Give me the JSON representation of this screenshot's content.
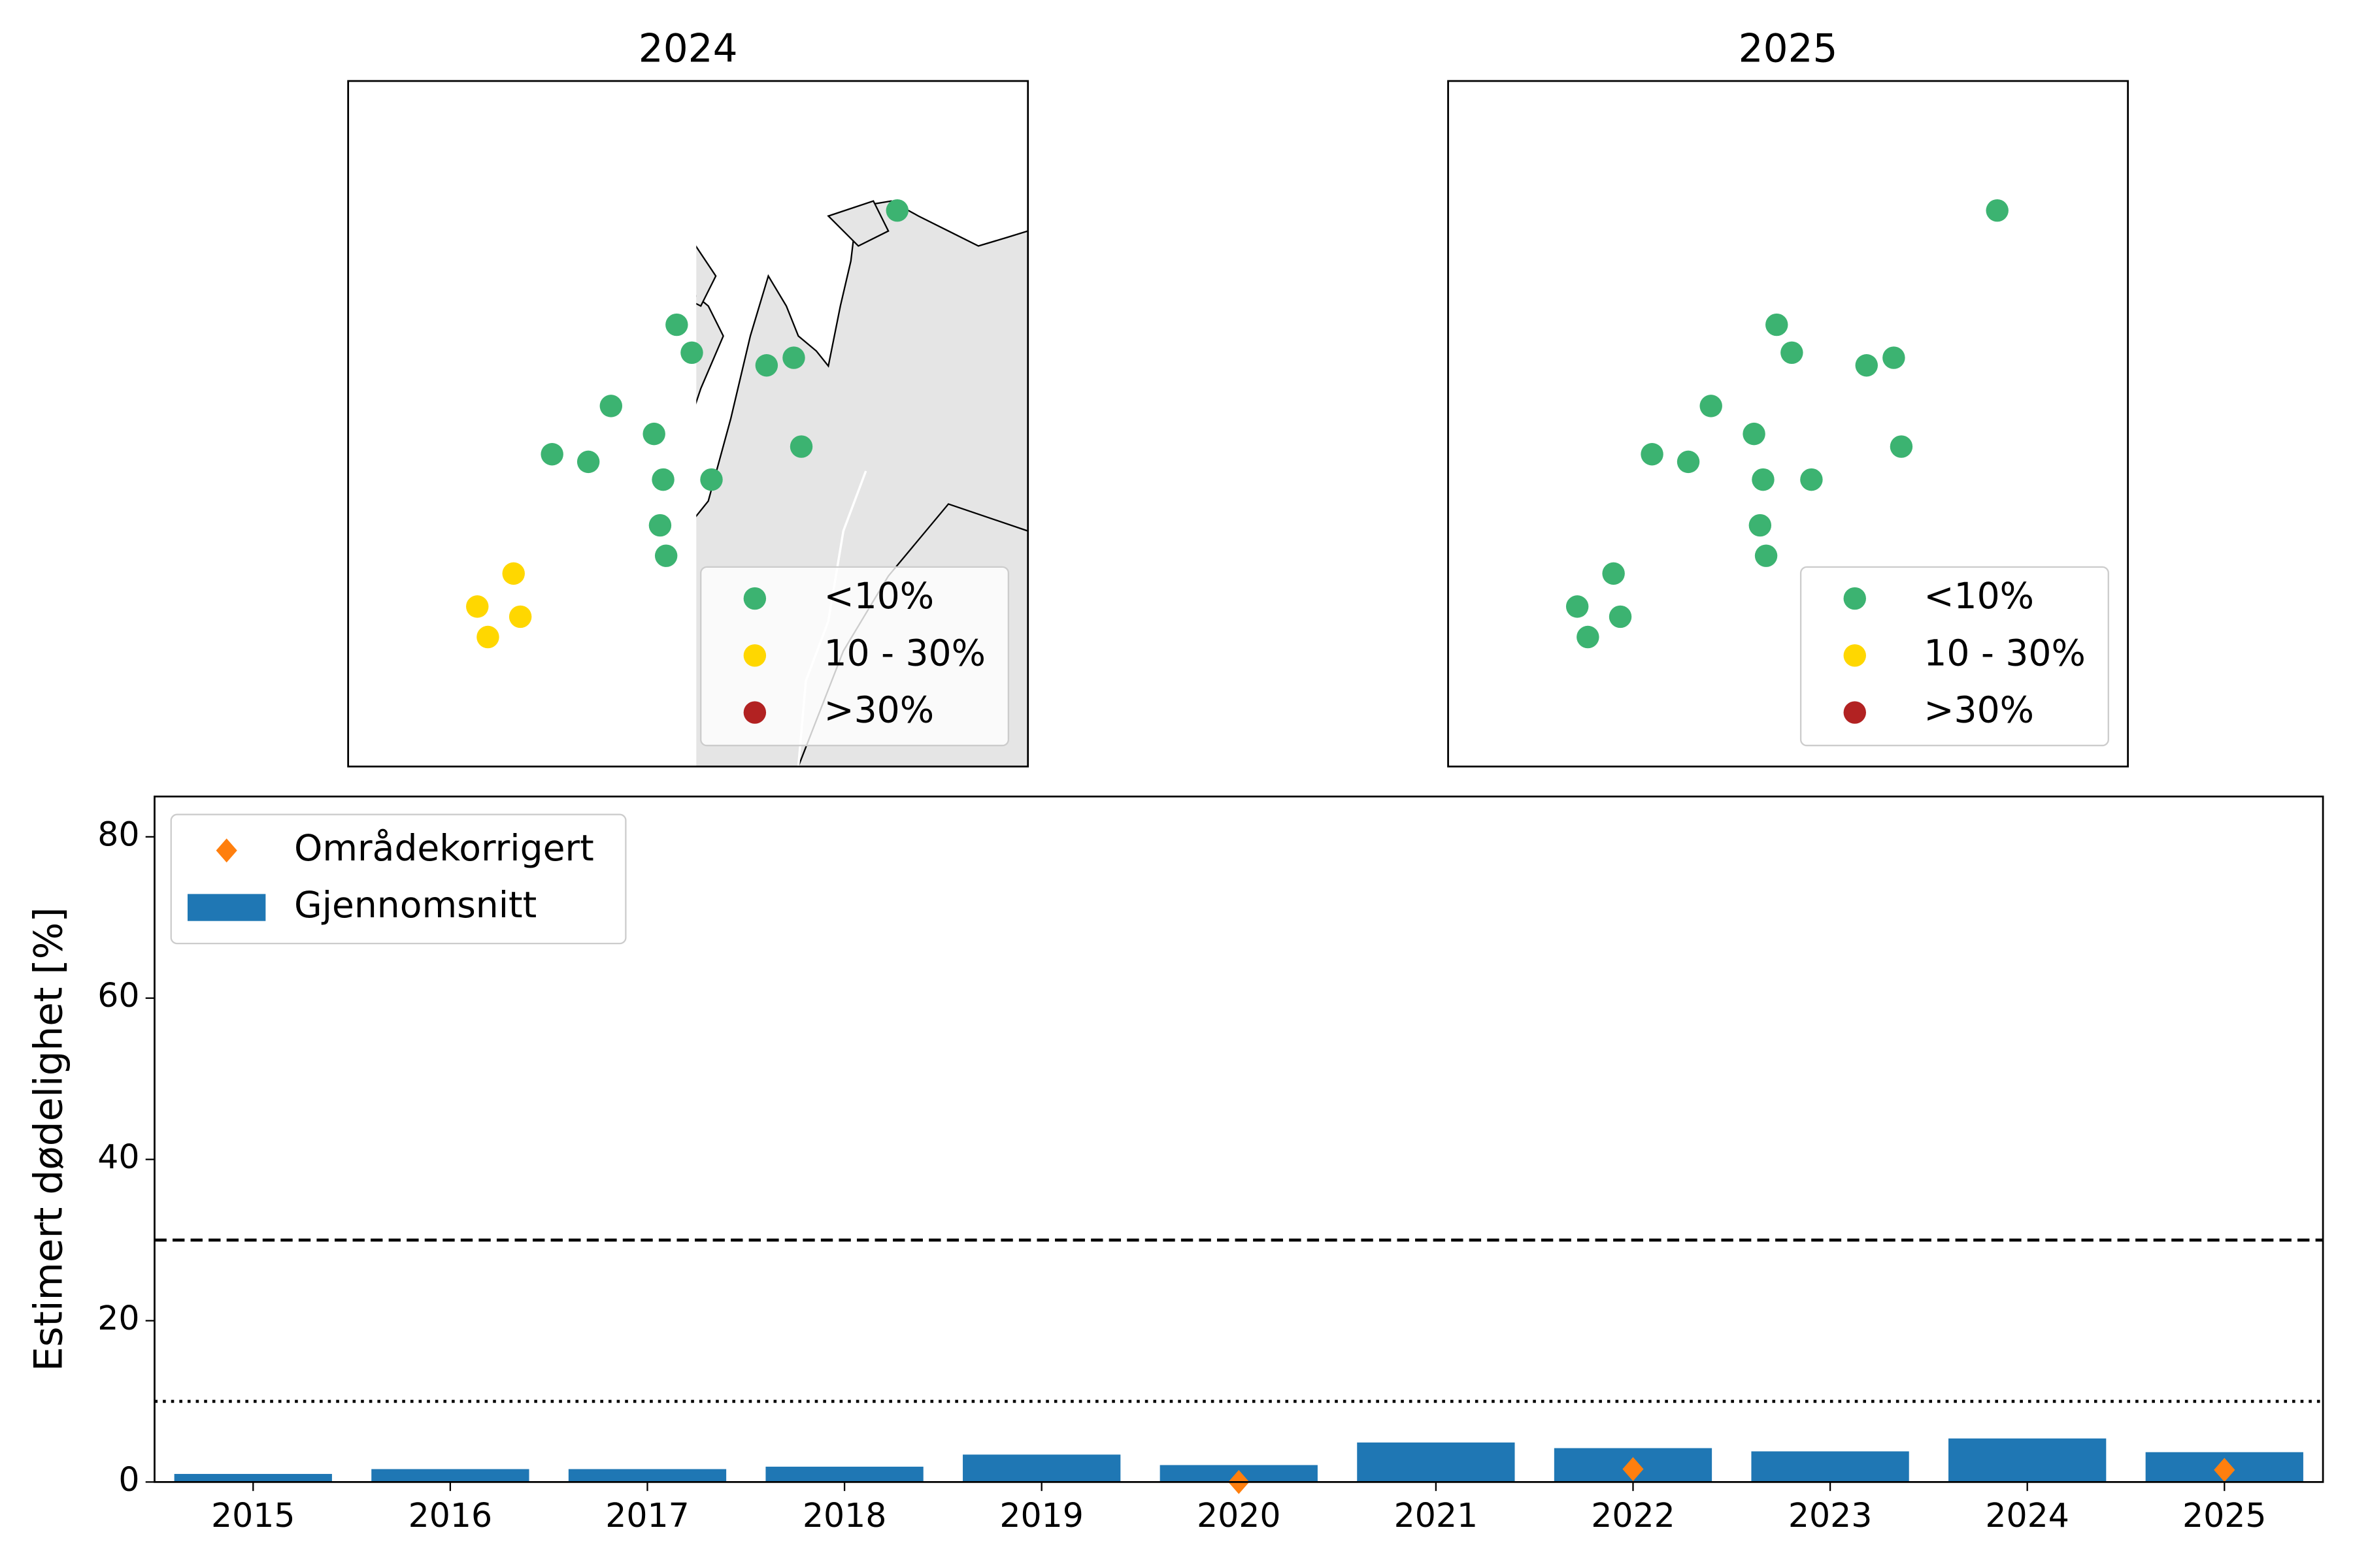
{
  "chart_data": [
    {
      "type": "map-scatter",
      "title": "2024",
      "xlim": [
        15.5,
        24.5
      ],
      "ylim": [
        68.5,
        71.2
      ],
      "series": [
        {
          "name": "<10%",
          "color": "#3cb371",
          "x": [
            22.77,
            19.85,
            20.05,
            21.04,
            21.4,
            18.98,
            19.55,
            18.2,
            18.68,
            21.5,
            19.67,
            20.31,
            19.63,
            19.71
          ],
          "y": [
            70.69,
            70.24,
            70.13,
            70.08,
            70.11,
            69.92,
            69.81,
            69.73,
            69.7,
            69.76,
            69.63,
            69.63,
            69.45,
            69.33
          ]
        },
        {
          "name": "10 - 30%",
          "color": "#ffd700",
          "x": [
            17.69,
            17.21,
            17.78,
            17.35
          ],
          "y": [
            69.26,
            69.13,
            69.09,
            69.01
          ]
        },
        {
          "name": ">30%",
          "color": "#b22222",
          "x": [],
          "y": []
        }
      ]
    },
    {
      "type": "map-scatter",
      "title": "2025",
      "xlim": [
        15.5,
        24.5
      ],
      "ylim": [
        68.5,
        71.2
      ],
      "series": [
        {
          "name": "<10%",
          "color": "#3cb371",
          "x": [
            22.77,
            19.85,
            20.05,
            21.04,
            21.4,
            18.98,
            19.55,
            18.2,
            18.68,
            21.5,
            19.67,
            20.31,
            19.63,
            19.71,
            17.69,
            17.21,
            17.78,
            17.35
          ],
          "y": [
            70.69,
            70.24,
            70.13,
            70.08,
            70.11,
            69.92,
            69.81,
            69.73,
            69.7,
            69.76,
            69.63,
            69.63,
            69.45,
            69.33,
            69.26,
            69.13,
            69.09,
            69.01
          ]
        },
        {
          "name": "10 - 30%",
          "color": "#ffd700",
          "x": [],
          "y": []
        },
        {
          "name": ">30%",
          "color": "#b22222",
          "x": [],
          "y": []
        }
      ]
    },
    {
      "type": "bar",
      "ylabel": "Estimert dødelighet [%]",
      "categories": [
        "2015",
        "2016",
        "2017",
        "2018",
        "2019",
        "2020",
        "2021",
        "2022",
        "2023",
        "2024",
        "2025"
      ],
      "series": [
        {
          "name": "Områdekorrigert",
          "color": "#ff7f0e",
          "marker": "diamond",
          "values": [
            null,
            null,
            null,
            null,
            null,
            0,
            null,
            1.6,
            null,
            null,
            1.5
          ]
        },
        {
          "name": "Gjennomsnitt",
          "color": "#1f77b4",
          "marker": "bar",
          "values": [
            1.0,
            1.6,
            1.6,
            1.9,
            3.4,
            2.1,
            4.9,
            4.2,
            3.8,
            5.4,
            3.7
          ]
        }
      ],
      "ylim": [
        0,
        85
      ],
      "yticks": [
        0,
        20,
        40,
        60,
        80
      ],
      "reference_lines": [
        {
          "value": 30,
          "style": "dashed"
        },
        {
          "value": 10,
          "style": "dotted"
        }
      ],
      "legend": "upper left"
    }
  ]
}
